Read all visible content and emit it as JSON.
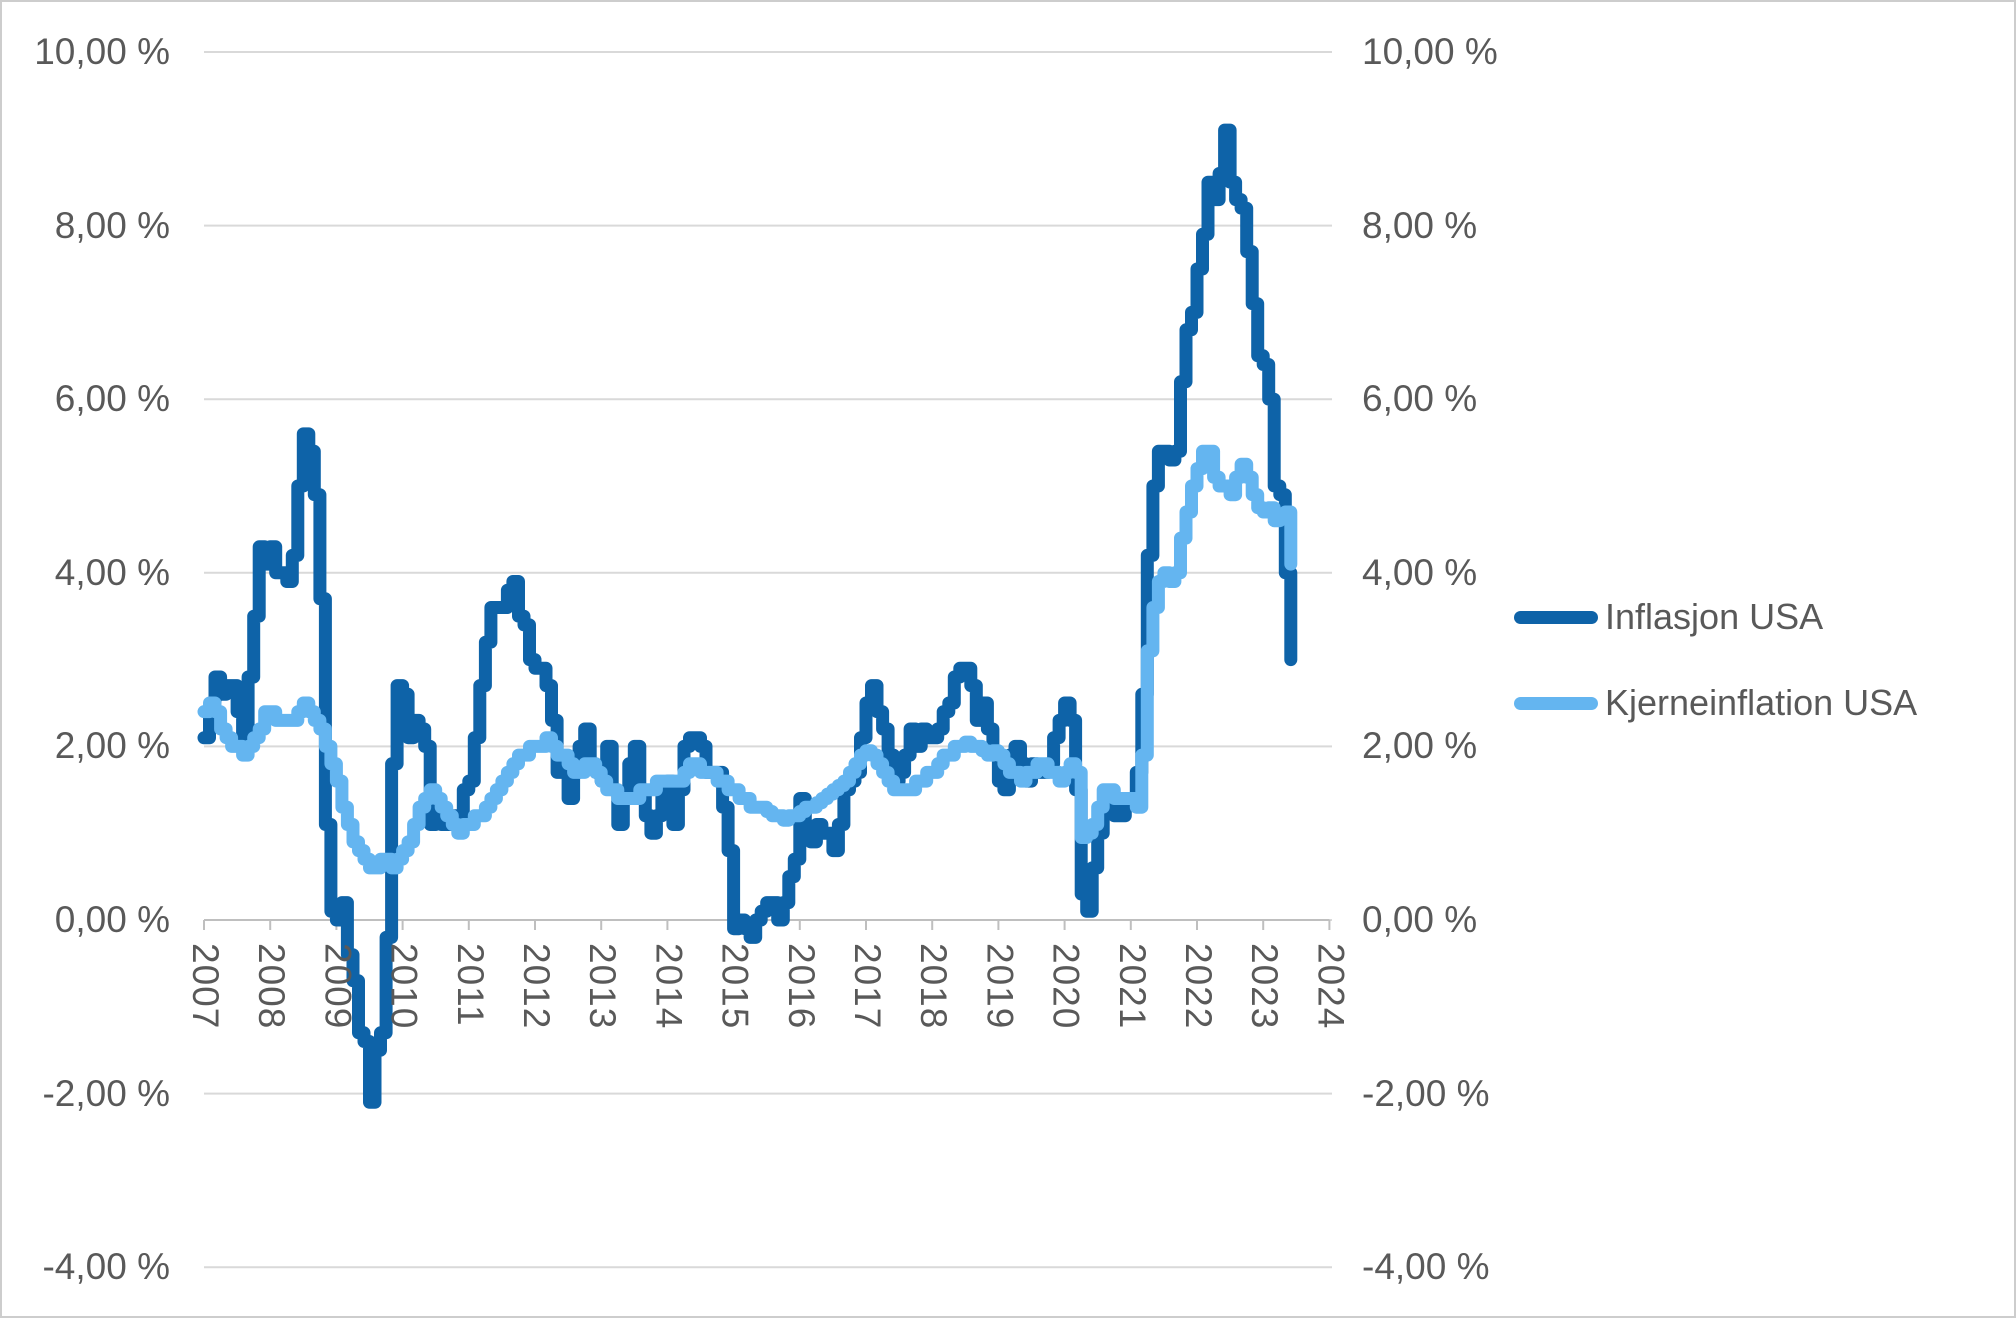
{
  "styles": {
    "background": "#FFFFFF",
    "border_color": "#CDCDCD",
    "gridline_color": "#D9D9D9",
    "axis_color": "#BFBFBF",
    "label_color": "#595959"
  },
  "chart_data": {
    "type": "line",
    "title": "",
    "frequency": "monthly",
    "x_start": "2007-01",
    "x_end": "2023-06",
    "x_tick_labels": [
      "2007",
      "2008",
      "2009",
      "2010",
      "2011",
      "2012",
      "2013",
      "2014",
      "2015",
      "2016",
      "2017",
      "2018",
      "2019",
      "2020",
      "2021",
      "2022",
      "2023",
      "2024"
    ],
    "y_tick_labels": [
      "10,00 %",
      "8,00 %",
      "6,00 %",
      "4,00 %",
      "2,00 %",
      "0,00 %",
      "-2,00 %",
      "-4,00 %"
    ],
    "y_tick_values": [
      10,
      8,
      6,
      4,
      2,
      0,
      -2,
      -4
    ],
    "ylim": [
      -4,
      10
    ],
    "grid": "horizontal",
    "legend_position": "right",
    "series": [
      {
        "name": "Inflasjon USA",
        "color": "#0E63A8",
        "values": [
          2.1,
          2.4,
          2.8,
          2.6,
          2.7,
          2.7,
          2.4,
          2.0,
          2.8,
          3.5,
          4.3,
          4.1,
          4.3,
          4.0,
          4.0,
          3.9,
          4.2,
          5.0,
          5.6,
          5.4,
          4.9,
          3.7,
          1.1,
          0.1,
          0.0,
          0.2,
          -0.4,
          -0.7,
          -1.3,
          -1.4,
          -2.1,
          -1.5,
          -1.3,
          -0.2,
          1.8,
          2.7,
          2.6,
          2.1,
          2.3,
          2.2,
          2.0,
          1.1,
          1.2,
          1.1,
          1.1,
          1.2,
          1.1,
          1.5,
          1.6,
          2.1,
          2.7,
          3.2,
          3.6,
          3.6,
          3.6,
          3.8,
          3.9,
          3.5,
          3.4,
          3.0,
          2.9,
          2.9,
          2.7,
          2.3,
          1.7,
          1.7,
          1.4,
          1.7,
          2.0,
          2.2,
          1.8,
          1.7,
          1.6,
          2.0,
          1.5,
          1.1,
          1.4,
          1.8,
          2.0,
          1.5,
          1.2,
          1.0,
          1.2,
          1.5,
          1.6,
          1.1,
          1.5,
          2.0,
          2.1,
          2.1,
          2.0,
          1.7,
          1.7,
          1.7,
          1.3,
          0.8,
          -0.1,
          0.0,
          -0.1,
          -0.2,
          0.0,
          0.1,
          0.2,
          0.2,
          0.0,
          0.2,
          0.5,
          0.7,
          1.4,
          1.0,
          0.9,
          1.1,
          1.0,
          1.0,
          0.8,
          1.1,
          1.5,
          1.6,
          1.7,
          2.1,
          2.5,
          2.7,
          2.4,
          2.2,
          1.9,
          1.6,
          1.7,
          1.9,
          2.2,
          2.0,
          2.2,
          2.1,
          2.1,
          2.2,
          2.4,
          2.5,
          2.8,
          2.9,
          2.9,
          2.7,
          2.3,
          2.5,
          2.2,
          1.9,
          1.6,
          1.5,
          1.9,
          2.0,
          1.8,
          1.6,
          1.8,
          1.7,
          1.7,
          1.8,
          2.1,
          2.3,
          2.5,
          2.3,
          1.5,
          0.3,
          0.1,
          0.6,
          1.0,
          1.3,
          1.4,
          1.2,
          1.2,
          1.4,
          1.4,
          1.7,
          2.6,
          4.2,
          5.0,
          5.4,
          5.4,
          5.3,
          5.4,
          6.2,
          6.8,
          7.0,
          7.5,
          7.9,
          8.5,
          8.3,
          8.6,
          9.1,
          8.5,
          8.3,
          8.2,
          7.7,
          7.1,
          6.5,
          6.4,
          6.0,
          5.0,
          4.9,
          4.0,
          3.0
        ]
      },
      {
        "name": "Kjerneinflation USA",
        "color": "#64B5F0",
        "values": [
          2.4,
          2.5,
          2.4,
          2.2,
          2.1,
          2.0,
          2.0,
          1.9,
          2.0,
          2.1,
          2.2,
          2.4,
          2.4,
          2.3,
          2.3,
          2.3,
          2.3,
          2.4,
          2.5,
          2.4,
          2.3,
          2.2,
          2.0,
          1.8,
          1.6,
          1.3,
          1.1,
          0.9,
          0.8,
          0.7,
          0.6,
          0.6,
          0.7,
          0.7,
          0.6,
          0.7,
          0.8,
          0.9,
          1.1,
          1.3,
          1.4,
          1.5,
          1.4,
          1.3,
          1.2,
          1.1,
          1.0,
          1.1,
          1.1,
          1.2,
          1.2,
          1.3,
          1.4,
          1.5,
          1.6,
          1.7,
          1.8,
          1.9,
          1.9,
          2.0,
          2.0,
          2.0,
          2.1,
          2.0,
          1.9,
          1.9,
          1.8,
          1.7,
          1.7,
          1.8,
          1.8,
          1.7,
          1.6,
          1.5,
          1.5,
          1.4,
          1.4,
          1.4,
          1.4,
          1.5,
          1.5,
          1.5,
          1.6,
          1.6,
          1.6,
          1.6,
          1.6,
          1.7,
          1.8,
          1.8,
          1.7,
          1.7,
          1.7,
          1.6,
          1.6,
          1.5,
          1.5,
          1.4,
          1.4,
          1.3,
          1.3,
          1.3,
          1.25,
          1.2,
          1.2,
          1.15,
          1.2,
          1.2,
          1.25,
          1.3,
          1.3,
          1.35,
          1.4,
          1.45,
          1.5,
          1.55,
          1.6,
          1.7,
          1.8,
          1.9,
          1.95,
          1.9,
          1.8,
          1.7,
          1.6,
          1.5,
          1.5,
          1.5,
          1.5,
          1.6,
          1.6,
          1.7,
          1.7,
          1.8,
          1.9,
          1.9,
          2.0,
          2.0,
          2.05,
          2.0,
          2.0,
          1.95,
          1.9,
          1.95,
          1.9,
          1.8,
          1.7,
          1.7,
          1.6,
          1.7,
          1.7,
          1.8,
          1.8,
          1.7,
          1.7,
          1.6,
          1.7,
          1.8,
          1.7,
          0.95,
          1.0,
          1.1,
          1.3,
          1.5,
          1.5,
          1.4,
          1.4,
          1.4,
          1.4,
          1.3,
          1.9,
          3.1,
          3.6,
          3.9,
          4.0,
          3.9,
          4.0,
          4.4,
          4.7,
          5.0,
          5.2,
          5.4,
          5.4,
          5.1,
          5.0,
          5.0,
          4.9,
          5.1,
          5.25,
          5.1,
          4.9,
          4.75,
          4.7,
          4.75,
          4.6,
          4.65,
          4.7,
          4.1
        ]
      }
    ]
  }
}
